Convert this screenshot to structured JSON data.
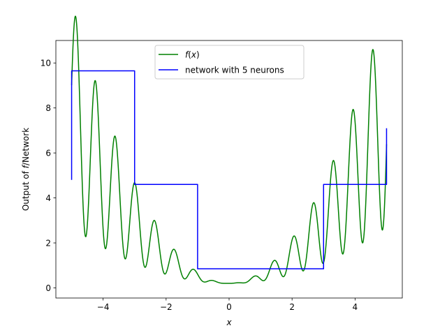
{
  "chart_data": {
    "type": "line",
    "xlabel": "x",
    "ylabel": "Output of f/Network",
    "xlim": [
      -5.5,
      5.5
    ],
    "ylim": [
      -0.45,
      11.0
    ],
    "xticks": [
      -4,
      -2,
      0,
      2,
      4
    ],
    "xtick_labels": [
      "−4",
      "−2",
      "0",
      "2",
      "4"
    ],
    "yticks": [
      0,
      2,
      4,
      6,
      8,
      10
    ],
    "ytick_labels": [
      "0",
      "2",
      "4",
      "6",
      "8",
      "10"
    ],
    "grid": false,
    "legend_position": "top-center",
    "series": [
      {
        "name": "f(x)",
        "color": "#008000",
        "function": "0.3*x^2 + 0.2*x^2*sin(10x) + 0.2",
        "x_range": [
          -5,
          5
        ],
        "sample_points": [
          [
            -5.0,
            9.65
          ],
          [
            -4.9,
            9.8
          ],
          [
            -4.75,
            10.5
          ],
          [
            -4.6,
            8.3
          ],
          [
            -4.45,
            6.9
          ],
          [
            -4.3,
            8.9
          ],
          [
            -4.15,
            6.7
          ],
          [
            -4.0,
            6.1
          ],
          [
            -3.85,
            7.45
          ],
          [
            -3.7,
            5.5
          ],
          [
            -3.55,
            4.5
          ],
          [
            -3.4,
            6.0
          ],
          [
            -3.2,
            3.4
          ],
          [
            -3.05,
            4.8
          ],
          [
            -2.85,
            2.5
          ],
          [
            -2.7,
            3.8
          ],
          [
            -2.5,
            1.8
          ],
          [
            -2.2,
            2.8
          ],
          [
            -1.95,
            1.2
          ],
          [
            -1.75,
            2.0
          ],
          [
            -1.55,
            0.65
          ],
          [
            -1.4,
            1.4
          ],
          [
            -1.15,
            0.3
          ],
          [
            -0.85,
            0.8
          ],
          [
            -0.55,
            0.2
          ],
          [
            0.0,
            0.25
          ],
          [
            0.55,
            0.2
          ],
          [
            0.85,
            0.8
          ],
          [
            1.15,
            0.3
          ],
          [
            1.4,
            1.4
          ],
          [
            1.55,
            0.65
          ],
          [
            1.75,
            2.0
          ],
          [
            1.95,
            1.2
          ],
          [
            2.2,
            2.8
          ],
          [
            2.5,
            1.8
          ],
          [
            2.7,
            3.8
          ],
          [
            2.85,
            2.5
          ],
          [
            3.05,
            4.8
          ],
          [
            3.2,
            3.4
          ],
          [
            3.4,
            6.0
          ],
          [
            3.55,
            4.5
          ],
          [
            3.7,
            5.5
          ],
          [
            3.85,
            7.45
          ],
          [
            4.0,
            6.1
          ],
          [
            4.15,
            6.7
          ],
          [
            4.3,
            8.9
          ],
          [
            4.45,
            6.9
          ],
          [
            4.6,
            8.3
          ],
          [
            4.75,
            10.5
          ],
          [
            4.9,
            8.5
          ],
          [
            5.0,
            9.65
          ]
        ]
      },
      {
        "name": "network with 5 neurons",
        "color": "#0000ff",
        "points": [
          [
            -5.0,
            4.8
          ],
          [
            -5.0,
            9.65
          ],
          [
            -3.0,
            9.65
          ],
          [
            -3.0,
            4.6
          ],
          [
            -1.0,
            4.6
          ],
          [
            -1.0,
            0.85
          ],
          [
            3.0,
            0.85
          ],
          [
            3.0,
            4.6
          ],
          [
            5.0,
            4.6
          ],
          [
            5.0,
            7.1
          ]
        ]
      }
    ]
  }
}
